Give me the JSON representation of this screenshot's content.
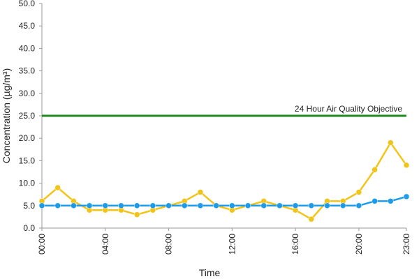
{
  "chart_data": {
    "type": "line",
    "x_label": "Time",
    "y_label": "Concentration (µg/m³)",
    "categories": [
      "00:00",
      null,
      null,
      null,
      "04:00",
      null,
      null,
      null,
      "08:00",
      null,
      null,
      null,
      "12:00",
      null,
      null,
      null,
      "16:00",
      null,
      null,
      null,
      "20:00",
      null,
      null,
      "23:00"
    ],
    "series": [
      {
        "color": "#f0c419",
        "values": [
          6,
          9,
          6,
          4,
          4,
          4,
          3,
          4,
          5,
          6,
          8,
          5,
          4,
          5,
          6,
          5,
          4,
          2,
          6,
          6,
          8,
          13,
          19,
          14
        ]
      },
      {
        "color": "#1e9be8",
        "values": [
          5,
          5,
          5,
          5,
          5,
          5,
          5,
          5,
          5,
          5,
          5,
          5,
          5,
          5,
          5,
          5,
          5,
          5,
          5,
          5,
          5,
          6,
          6,
          7
        ]
      }
    ],
    "reference_line": {
      "value": 25,
      "label": "24 Hour Air Quality Objective",
      "color": "#1f8a1f"
    },
    "ylim": [
      0,
      50
    ],
    "yticks": [
      {
        "value": 0,
        "label": "0.0"
      },
      {
        "value": 5,
        "label": "5.0"
      },
      {
        "value": 10,
        "label": "10.0"
      },
      {
        "value": 15,
        "label": "15.0"
      },
      {
        "value": 20,
        "label": "20.0"
      },
      {
        "value": 25,
        "label": "25.0"
      },
      {
        "value": 30,
        "label": "30.0"
      },
      {
        "value": 35,
        "label": "35.0"
      },
      {
        "value": 40,
        "label": "40.0"
      },
      {
        "value": 45,
        "label": "45.0"
      },
      {
        "value": 50,
        "label": "50.0"
      }
    ]
  }
}
